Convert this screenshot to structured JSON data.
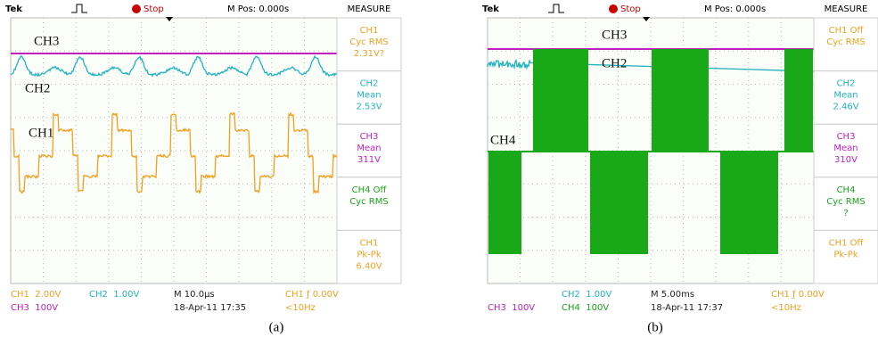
{
  "panels": [
    {
      "header": {
        "brand": "Tek",
        "status": "Stop",
        "position": "M Pos: 0.000s",
        "menu": "MEASURE"
      },
      "trace_labels": [
        "CH3",
        "CH2",
        "CH1"
      ],
      "measure": [
        [
          "CH1",
          "Cyc RMS",
          "2.31V?"
        ],
        [
          "CH2",
          "Mean",
          "2.53V"
        ],
        [
          "CH3",
          "Mean",
          "311V"
        ],
        [
          "CH4 Off",
          "Cyc RMS"
        ],
        [
          "CH1",
          "Pk-Pk",
          "6.40V"
        ]
      ],
      "footer": [
        [
          "CH1  2.00V",
          "CH2  1.00V",
          "M 10.0µs",
          "CH1 ƒ 0.00V"
        ],
        [
          "CH3  100V",
          "18-Apr-11 17:35",
          "<10Hz"
        ]
      ],
      "caption": "(a)"
    },
    {
      "header": {
        "brand": "Tek",
        "status": "Stop",
        "position": "M Pos: 0.000s",
        "menu": "MEASURE"
      },
      "trace_labels": [
        "CH3",
        "CH2",
        "CH4"
      ],
      "measure": [
        [
          "CH1 Off",
          "Cyc RMS"
        ],
        [
          "CH2",
          "Mean",
          "2.46V"
        ],
        [
          "CH3",
          "Mean",
          "310V"
        ],
        [
          "CH4",
          "Cyc RMS",
          "?"
        ],
        [
          "CH1 Off",
          "Pk-Pk"
        ]
      ],
      "footer": [
        [
          "CH2  1.00V",
          "M 5.00ms",
          "CH1 ƒ 0.00V"
        ],
        [
          "CH3  100V",
          "CH4  100V",
          "18-Apr-11 17:37",
          "<10Hz"
        ]
      ],
      "caption": "(b)"
    }
  ]
}
